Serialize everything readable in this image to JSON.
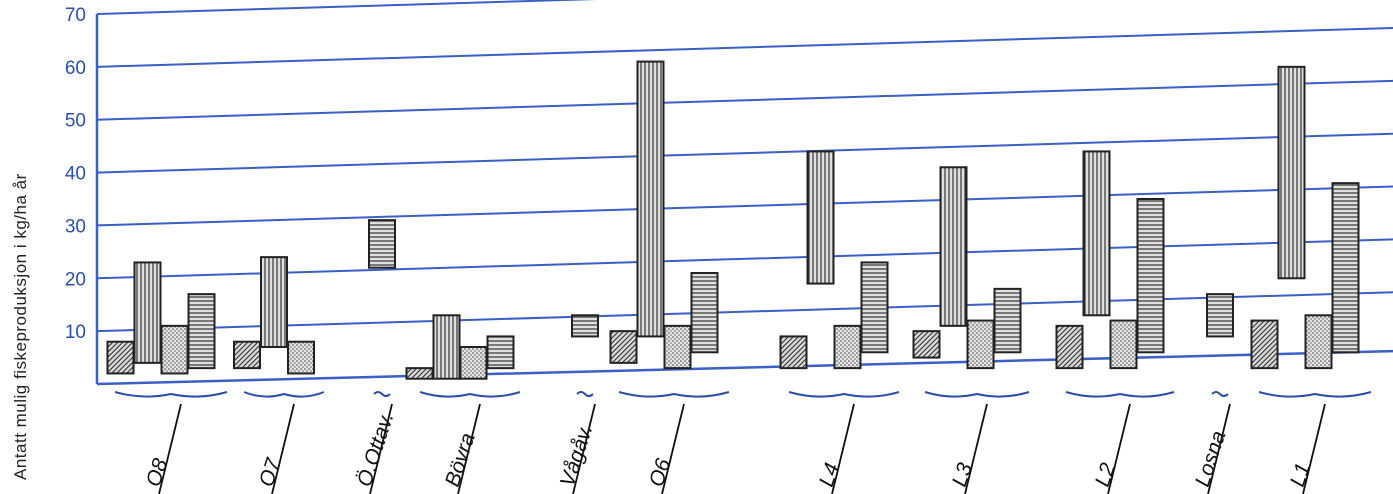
{
  "chart_data": {
    "type": "bar",
    "ylabel": "Antatt mulig fiskeproduksjon i kg/ha år",
    "ylim": [
      0,
      70
    ],
    "yticks": [
      "10",
      "20",
      "30",
      "40",
      "50",
      "60",
      "70"
    ],
    "colors": {
      "gridline": "#3a5fc8",
      "bar_fill": "#d6d6d6",
      "bar_stroke": "#222222",
      "tick_text": "#2b4fa8"
    },
    "groups": [
      {
        "label": "O8",
        "bars": [
          {
            "low": 2,
            "high": 8,
            "pattern": "diagonal"
          },
          {
            "low": 4,
            "high": 23,
            "pattern": "vertical"
          },
          {
            "low": 2,
            "high": 11,
            "pattern": "dotted"
          },
          {
            "low": 3,
            "high": 17,
            "pattern": "horizontal"
          }
        ]
      },
      {
        "label": "O7",
        "bars": [
          {
            "low": 3,
            "high": 8,
            "pattern": "diagonal"
          },
          {
            "low": 7,
            "high": 24,
            "pattern": "vertical"
          },
          {
            "low": 2,
            "high": 8,
            "pattern": "dotted"
          }
        ]
      },
      {
        "label": "Ö.Ottav.",
        "bars": [
          {
            "low": 22,
            "high": 31,
            "pattern": "horizontal"
          }
        ]
      },
      {
        "label": "Bövra",
        "bars": [
          {
            "low": 1,
            "high": 3,
            "pattern": "diagonal"
          },
          {
            "low": 1,
            "high": 13,
            "pattern": "vertical"
          },
          {
            "low": 1,
            "high": 7,
            "pattern": "dotted"
          },
          {
            "low": 3,
            "high": 9,
            "pattern": "horizontal"
          }
        ]
      },
      {
        "label": "Vågåv.",
        "bars": [
          {
            "low": 9,
            "high": 13,
            "pattern": "horizontal"
          }
        ]
      },
      {
        "label": "O6",
        "bars": [
          {
            "low": 4,
            "high": 10,
            "pattern": "diagonal"
          },
          {
            "low": 9,
            "high": 61,
            "pattern": "vertical"
          },
          {
            "low": 3,
            "high": 11,
            "pattern": "dotted"
          },
          {
            "low": 6,
            "high": 21,
            "pattern": "horizontal"
          }
        ]
      },
      {
        "label": "L4",
        "bars": [
          {
            "low": 3,
            "high": 9,
            "pattern": "diagonal"
          },
          {
            "low": 19,
            "high": 44,
            "pattern": "vertical"
          },
          {
            "low": 3,
            "high": 11,
            "pattern": "dotted"
          },
          {
            "low": 6,
            "high": 23,
            "pattern": "horizontal"
          }
        ]
      },
      {
        "label": "L3",
        "bars": [
          {
            "low": 5,
            "high": 10,
            "pattern": "diagonal"
          },
          {
            "low": 11,
            "high": 41,
            "pattern": "vertical"
          },
          {
            "low": 3,
            "high": 12,
            "pattern": "dotted"
          },
          {
            "low": 6,
            "high": 18,
            "pattern": "horizontal"
          }
        ]
      },
      {
        "label": "L2",
        "bars": [
          {
            "low": 3,
            "high": 11,
            "pattern": "diagonal"
          },
          {
            "low": 13,
            "high": 44,
            "pattern": "vertical"
          },
          {
            "low": 3,
            "high": 12,
            "pattern": "dotted"
          },
          {
            "low": 6,
            "high": 35,
            "pattern": "horizontal"
          }
        ]
      },
      {
        "label": "Losna",
        "bars": [
          {
            "low": 9,
            "high": 17,
            "pattern": "horizontal"
          }
        ]
      },
      {
        "label": "L1",
        "bars": [
          {
            "low": 3,
            "high": 12,
            "pattern": "diagonal"
          },
          {
            "low": 20,
            "high": 60,
            "pattern": "vertical"
          },
          {
            "low": 3,
            "high": 13,
            "pattern": "dotted"
          },
          {
            "low": 6,
            "high": 38,
            "pattern": "horizontal"
          }
        ]
      }
    ]
  }
}
